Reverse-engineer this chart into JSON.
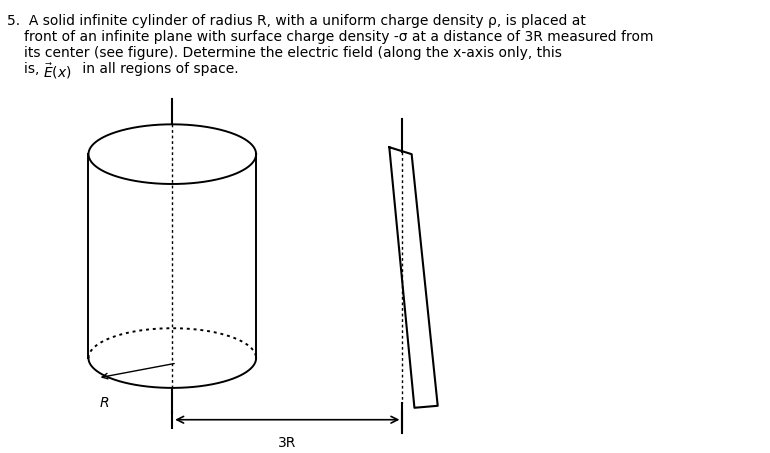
{
  "background_color": "#ffffff",
  "text_color": "#000000",
  "fig_width": 7.7,
  "fig_height": 4.53,
  "label_3R": "3R",
  "label_R": "R",
  "line_color": "#000000",
  "cyl_lw": 1.4,
  "plane_lw": 1.5,
  "axis_lw": 1.5,
  "text_lines": [
    "5.  A solid infinite cylinder of radius R, with a uniform charge density ρ, is placed at",
    "front of an infinite plane with surface charge density -σ at a distance of 3R measured from",
    "its center (see figure). Determine the electric field (along the x-axis only, this"
  ],
  "last_line_prefix": "is, ",
  "last_line_math": "$\\vec{E}(x)$",
  "last_line_suffix": " in all regions of space."
}
